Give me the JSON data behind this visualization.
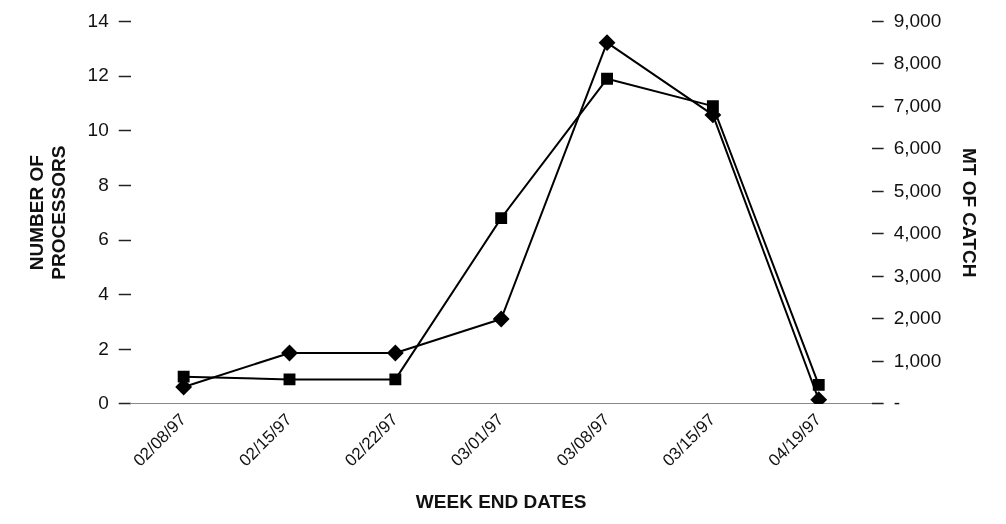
{
  "chart_data": {
    "type": "line",
    "xlabel": "WEEK END DATES",
    "ylabel": "NUMBER OF\nPROCESSORS",
    "y2label": "MT OF CATCH",
    "categories": [
      "02/08/97",
      "02/15/97",
      "02/22/97",
      "03/01/97",
      "03/08/97",
      "03/15/97",
      "04/19/97"
    ],
    "series": [
      {
        "color": "#000000",
        "marker": "square",
        "values": [
          1,
          0.9,
          0.9,
          6.8,
          11.9,
          10.9,
          0.7
        ]
      },
      {
        "color": "#000000",
        "marker": "diamond",
        "axis": "y2",
        "values": [
          400,
          1200,
          1200,
          2000,
          8500,
          6800,
          100
        ]
      }
    ],
    "ylim": [
      0,
      14
    ],
    "yticks": [
      0,
      2,
      4,
      6,
      8,
      10,
      12,
      14
    ],
    "y2lim": [
      0,
      9000
    ],
    "y2ticks": [
      {
        "value": 0,
        "label": "-"
      },
      {
        "value": 1000,
        "label": "1,000"
      },
      {
        "value": 2000,
        "label": "2,000"
      },
      {
        "value": 3000,
        "label": "3,000"
      },
      {
        "value": 4000,
        "label": "4,000"
      },
      {
        "value": 5000,
        "label": "5,000"
      },
      {
        "value": 6000,
        "label": "6,000"
      },
      {
        "value": 7000,
        "label": "7,000"
      },
      {
        "value": 8000,
        "label": "8,000"
      },
      {
        "value": 9000,
        "label": "9,000"
      }
    ],
    "grid": false,
    "legend": false
  }
}
